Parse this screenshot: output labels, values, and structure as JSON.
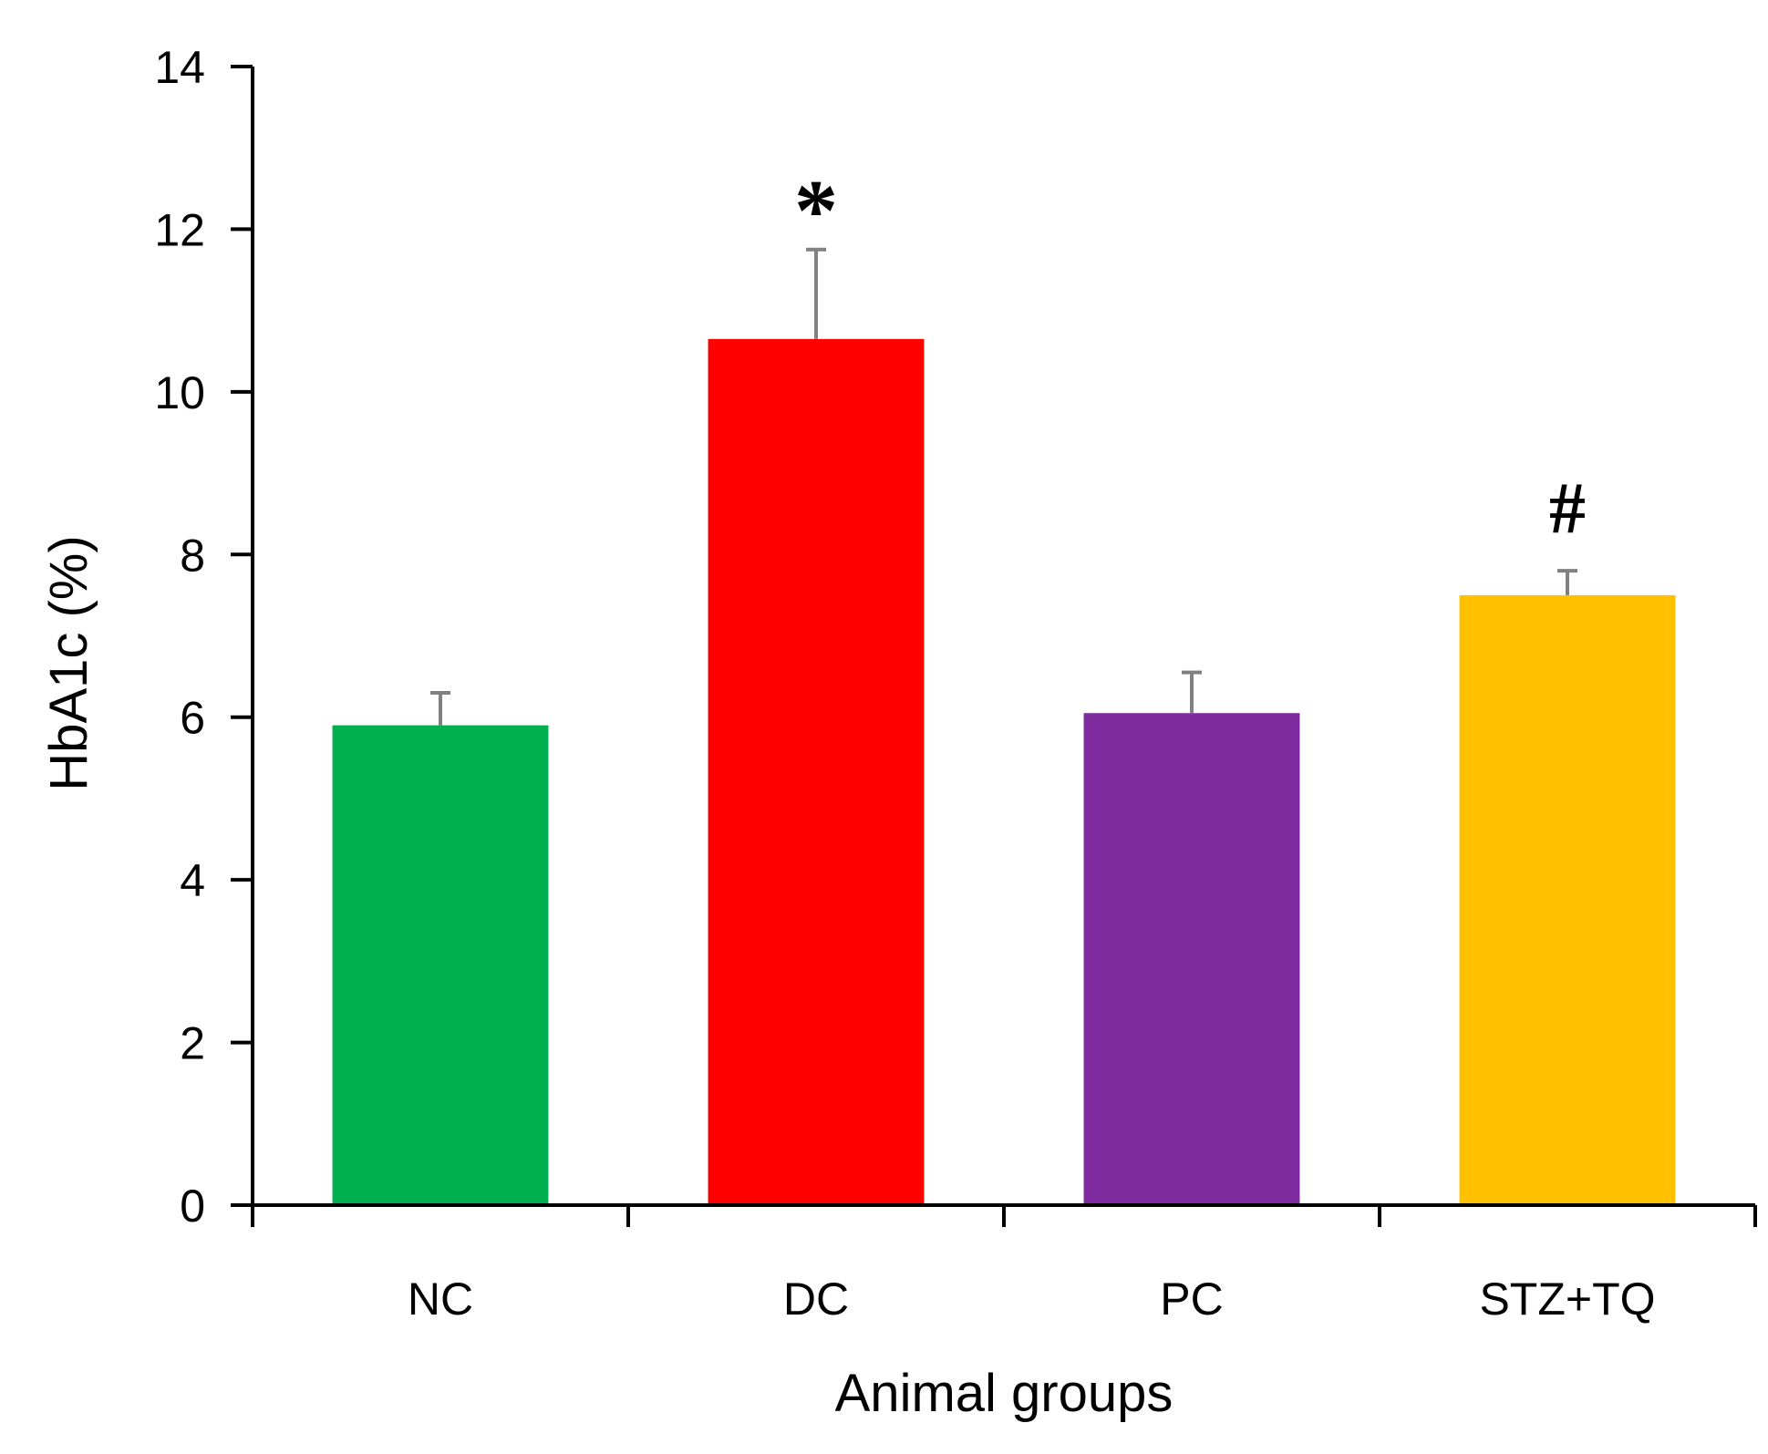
{
  "chart_data": {
    "type": "bar",
    "title": "",
    "xlabel": "Animal groups",
    "ylabel": "HbA1c (%)",
    "ylim": [
      0,
      14
    ],
    "yticks": [
      0,
      2,
      4,
      6,
      8,
      10,
      12,
      14
    ],
    "ytick_labels": [
      "0",
      "2",
      "4",
      "6",
      "8",
      "10",
      "12",
      "14"
    ],
    "grid": false,
    "categories": [
      "NC",
      "DC",
      "PC",
      "STZ+TQ"
    ],
    "values": [
      5.9,
      10.65,
      6.05,
      7.5
    ],
    "errors": [
      0.4,
      1.1,
      0.5,
      0.3
    ],
    "colors": [
      "#00b050",
      "#ff0000",
      "#7f2ba0",
      "#ffc000"
    ],
    "error_bar_color": "#808080",
    "annotations": [
      "",
      "*",
      "",
      "#"
    ]
  }
}
